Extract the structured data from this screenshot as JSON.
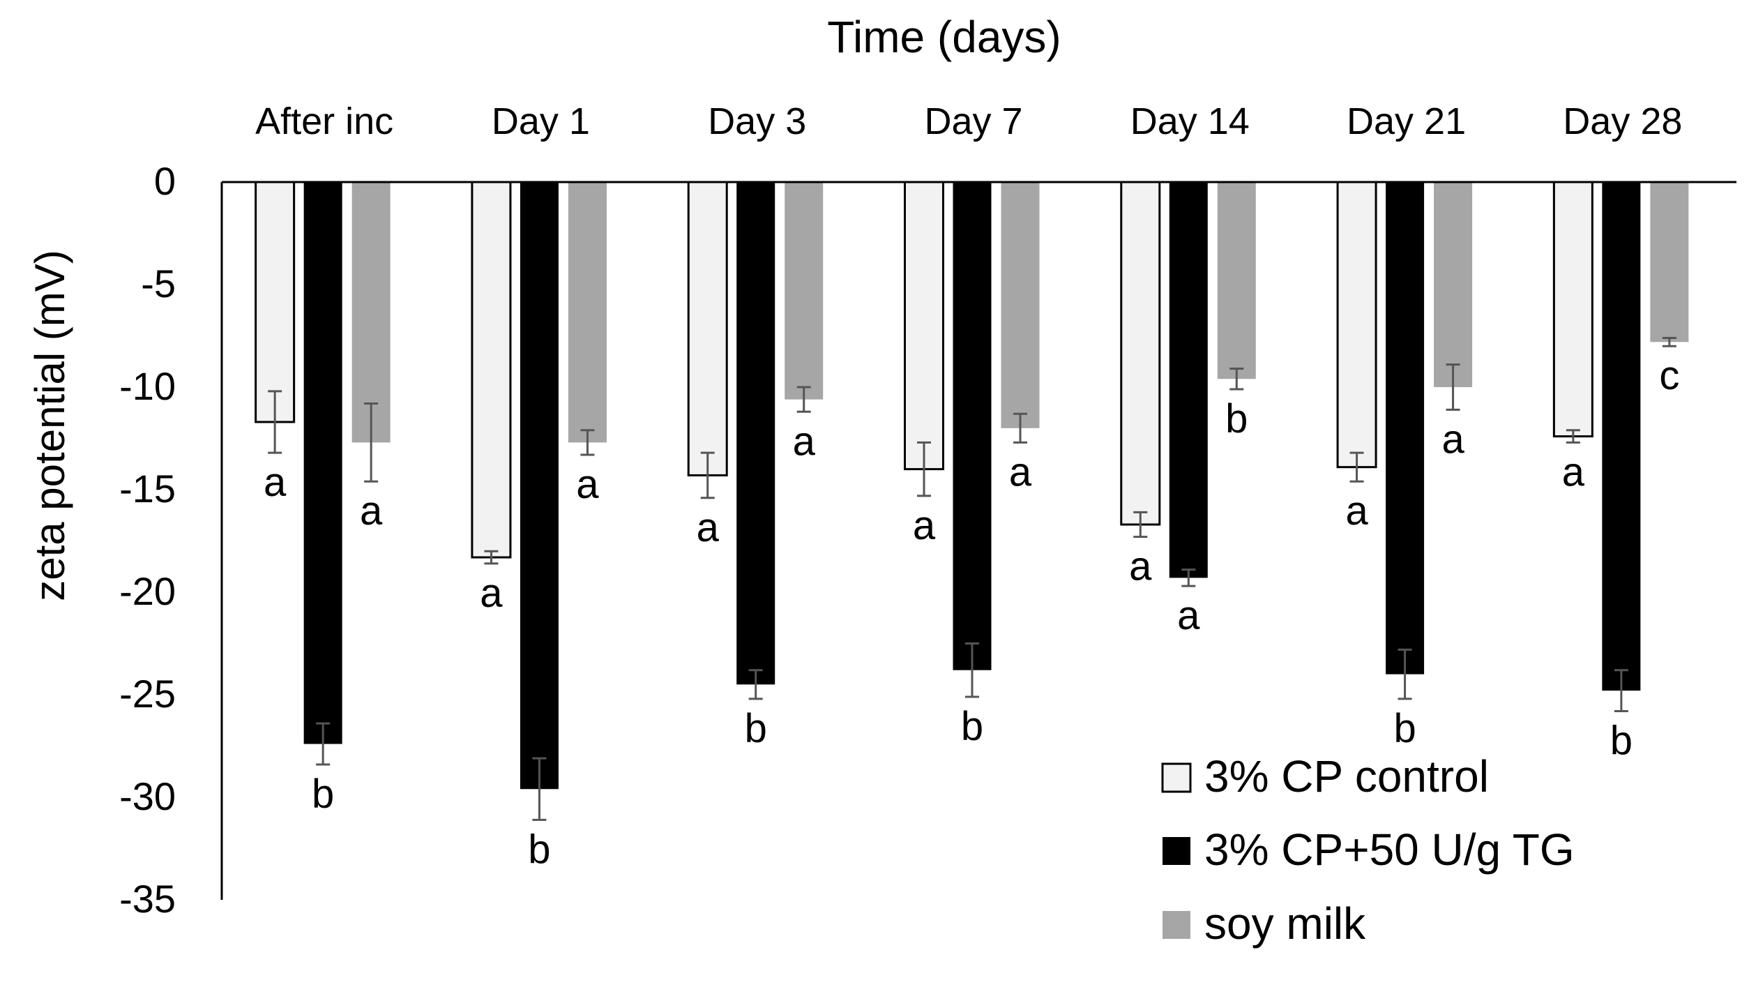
{
  "chart_data": {
    "type": "bar",
    "title": "Time (days)",
    "ylabel": "zeta potential (mV)",
    "xlabel": "",
    "categories": [
      "After inc",
      "Day 1",
      "Day 3",
      "Day 7",
      "Day 14",
      "Day 21",
      "Day 28"
    ],
    "ylim": [
      -35,
      0
    ],
    "yticks": [
      0,
      -5,
      -10,
      -15,
      -20,
      -25,
      -30,
      -35
    ],
    "x_axis_position": "top",
    "legend_position": "bottom-right",
    "grid": false,
    "series": [
      {
        "name": "3% CP control",
        "color": "#f2f2f2",
        "stroke": "#000000",
        "values": [
          -11.7,
          -18.3,
          -14.3,
          -14.0,
          -16.7,
          -13.9,
          -12.4
        ],
        "errors": [
          1.5,
          0.3,
          1.1,
          1.3,
          0.6,
          0.7,
          0.3
        ],
        "letters": [
          "a",
          "a",
          "a",
          "a",
          "a",
          "a",
          "a"
        ]
      },
      {
        "name": "3% CP+50 U/g TG",
        "color": "#000000",
        "stroke": "#000000",
        "values": [
          -27.4,
          -29.6,
          -24.5,
          -23.8,
          -19.3,
          -24.0,
          -24.8
        ],
        "errors": [
          1.0,
          1.5,
          0.7,
          1.3,
          0.4,
          1.2,
          1.0
        ],
        "letters": [
          "b",
          "b",
          "b",
          "b",
          "a",
          "b",
          "b"
        ]
      },
      {
        "name": "soy milk",
        "color": "#a6a6a6",
        "stroke": "#a6a6a6",
        "values": [
          -12.7,
          -12.7,
          -10.6,
          -12.0,
          -9.6,
          -10.0,
          -7.8
        ],
        "errors": [
          1.9,
          0.6,
          0.6,
          0.7,
          0.5,
          1.1,
          0.2
        ],
        "letters": [
          "a",
          "a",
          "a",
          "a",
          "b",
          "a",
          "c"
        ]
      }
    ]
  }
}
